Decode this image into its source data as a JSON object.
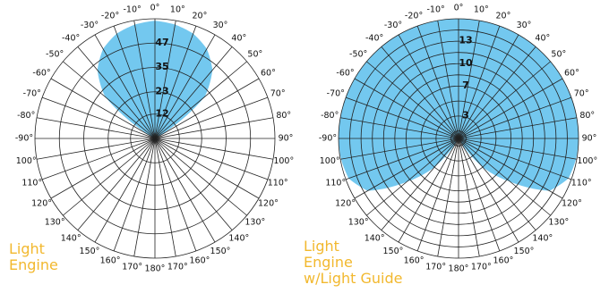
{
  "chart_data": [
    {
      "type": "polar-area",
      "legend": [
        "Light",
        "Engine"
      ],
      "fill_color": "#73c8ef",
      "grid_color": "#222222",
      "angle_ticks_deg": [
        0,
        10,
        20,
        30,
        40,
        50,
        60,
        70,
        80,
        90,
        100,
        110,
        120,
        130,
        140,
        150,
        160,
        170,
        180,
        -170,
        -160,
        -150,
        -140,
        -130,
        -120,
        -110,
        -100,
        -90,
        -80,
        -70,
        -60,
        -50,
        -40,
        -30,
        -20,
        -10
      ],
      "angle_tick_labels": [
        "0°",
        "10°",
        "20°",
        "30°",
        "40°",
        "50°",
        "60°",
        "70°",
        "80°",
        "90°",
        "100°",
        "110°",
        "120°",
        "130°",
        "140°",
        "150°",
        "160°",
        "170°",
        "180°",
        "170°",
        "160°",
        "150°",
        "140°",
        "130°",
        "120°",
        "110°",
        "100°",
        "-90°",
        "-80°",
        "-70°",
        "-60°",
        "-50°",
        "-40°",
        "-30°",
        "-20°",
        "-10°"
      ],
      "rings": [
        12,
        23,
        35,
        47,
        59
      ],
      "ring_labels": [
        "12",
        "23",
        "35",
        "47"
      ],
      "r_max": 59,
      "intensity_deg": [
        -60,
        -50,
        -40,
        -30,
        -20,
        -10,
        0,
        10,
        20,
        30,
        40,
        50,
        60
      ],
      "intensity": [
        0,
        32,
        44,
        51,
        55,
        57,
        58,
        57,
        55,
        51,
        44,
        32,
        0
      ]
    },
    {
      "type": "polar-area",
      "legend": [
        "Light",
        "Engine",
        "w/Light Guide"
      ],
      "fill_color": "#73c8ef",
      "grid_color": "#222222",
      "angle_ticks_deg": [
        0,
        10,
        20,
        30,
        40,
        50,
        60,
        70,
        80,
        90,
        100,
        110,
        120,
        130,
        140,
        150,
        160,
        170,
        180,
        -170,
        -160,
        -150,
        -140,
        -130,
        -120,
        -110,
        -100,
        -90,
        -80,
        -70,
        -60,
        -50,
        -40,
        -30,
        -20,
        -10
      ],
      "angle_tick_labels": [
        "0°",
        "10°",
        "20°",
        "30°",
        "40°",
        "50°",
        "60°",
        "70°",
        "80°",
        "90°",
        "100°",
        "110°",
        "120°",
        "130°",
        "140°",
        "150°",
        "160°",
        "170°",
        "180°",
        "170°",
        "160°",
        "150°",
        "140°",
        "130°",
        "120°",
        "110°",
        "100°",
        "-90°",
        "-80°",
        "-70°",
        "-60°",
        "-50°",
        "-40°",
        "-30°",
        "-20°",
        "-10°"
      ],
      "rings": [
        1,
        3,
        5,
        7,
        8.5,
        10,
        11.5,
        13,
        14.5,
        16
      ],
      "ring_labels": [
        "3",
        "7",
        "10",
        "13"
      ],
      "r_max": 16,
      "intensity_deg": [
        -150,
        -140,
        -130,
        -120,
        -110,
        -100,
        -90,
        -80,
        -70,
        -60,
        -50,
        -40,
        -30,
        -20,
        -10,
        0,
        10,
        20,
        30,
        40,
        50,
        60,
        70,
        80,
        90,
        100,
        110,
        120,
        130,
        140,
        150
      ],
      "intensity": [
        0,
        5,
        9,
        14,
        15.6,
        15.9,
        16,
        16,
        16,
        16,
        16,
        16,
        16,
        16,
        16,
        16,
        16,
        16,
        16,
        16,
        16,
        16,
        16,
        16,
        16,
        15.9,
        15.6,
        14,
        9,
        5,
        0
      ]
    }
  ]
}
